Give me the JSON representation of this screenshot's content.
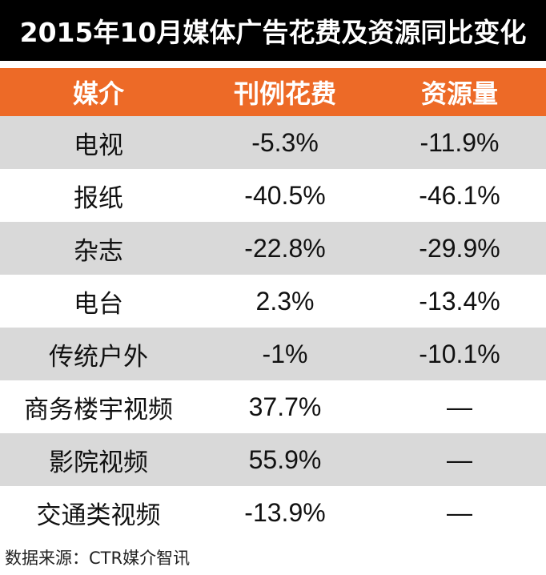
{
  "title": "2015年10月媒体广告花费及资源同比变化",
  "headers": [
    "媒介",
    "刊例花费",
    "资源量"
  ],
  "rows": [
    {
      "media": "电视",
      "spend": "-5.3%",
      "resource": "-11.9%"
    },
    {
      "media": "报纸",
      "spend": "-40.5%",
      "resource": "-46.1%"
    },
    {
      "media": "杂志",
      "spend": "-22.8%",
      "resource": "-29.9%"
    },
    {
      "media": "电台",
      "spend": "2.3%",
      "resource": "-13.4%"
    },
    {
      "media": "传统户外",
      "spend": "-1%",
      "resource": "-10.1%"
    },
    {
      "media": "商务楼宇视频",
      "spend": "37.7%",
      "resource": "—"
    },
    {
      "media": "影院视频",
      "spend": "55.9%",
      "resource": "—"
    },
    {
      "media": "交通类视频",
      "spend": "-13.9%",
      "resource": "—"
    }
  ],
  "source": "数据来源：CTR媒介智讯",
  "colors": {
    "title_bg": "#000000",
    "header_bg": "#ed6a27",
    "stripe_bg": "#d9d9d9"
  },
  "chart_data": {
    "type": "table",
    "title": "2015年10月媒体广告花费及资源同比变化",
    "columns": [
      "媒介",
      "刊例花费",
      "资源量"
    ],
    "rows": [
      [
        "电视",
        -5.3,
        -11.9
      ],
      [
        "报纸",
        -40.5,
        -46.1
      ],
      [
        "杂志",
        -22.8,
        -29.9
      ],
      [
        "电台",
        2.3,
        -13.4
      ],
      [
        "传统户外",
        -1,
        -10.1
      ],
      [
        "商务楼宇视频",
        37.7,
        null
      ],
      [
        "影院视频",
        55.9,
        null
      ],
      [
        "交通类视频",
        -13.9,
        null
      ]
    ],
    "units": "%"
  }
}
